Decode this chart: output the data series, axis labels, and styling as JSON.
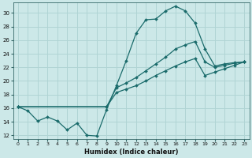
{
  "background_color": "#cce8e8",
  "grid_color": "#b0d4d4",
  "line_color": "#1a6b6b",
  "xlabel": "Humidex (Indice chaleur)",
  "xlim": [
    -0.5,
    23.5
  ],
  "ylim": [
    11.5,
    31.5
  ],
  "yticks": [
    12,
    14,
    16,
    18,
    20,
    22,
    24,
    26,
    28,
    30
  ],
  "xticks": [
    0,
    1,
    2,
    3,
    4,
    5,
    6,
    7,
    8,
    9,
    10,
    11,
    12,
    13,
    14,
    15,
    16,
    17,
    18,
    19,
    20,
    21,
    22,
    23
  ],
  "series1_x": [
    0,
    1,
    2,
    3,
    4,
    5,
    6,
    7,
    8,
    9,
    10,
    11,
    12,
    13,
    14,
    15,
    16,
    17,
    18,
    19,
    20,
    21,
    22,
    23
  ],
  "series1_y": [
    16.2,
    15.6,
    14.1,
    14.7,
    14.1,
    12.8,
    13.8,
    12.0,
    11.9,
    15.8,
    19.3,
    23.0,
    27.0,
    29.0,
    29.1,
    30.3,
    31.0,
    30.3,
    28.5,
    24.7,
    22.2,
    22.5,
    22.7,
    22.8
  ],
  "series2_x": [
    0,
    9,
    10,
    11,
    12,
    13,
    14,
    15,
    16,
    17,
    18,
    19,
    20,
    21,
    22,
    23
  ],
  "series2_y": [
    16.2,
    16.2,
    19.0,
    19.7,
    20.5,
    21.5,
    22.5,
    23.5,
    24.7,
    25.3,
    25.8,
    22.8,
    22.0,
    22.3,
    22.6,
    22.8
  ],
  "series3_x": [
    0,
    9,
    10,
    11,
    12,
    13,
    14,
    15,
    16,
    17,
    18,
    19,
    20,
    21,
    22,
    23
  ],
  "series3_y": [
    16.2,
    16.2,
    18.3,
    18.8,
    19.3,
    20.0,
    20.8,
    21.5,
    22.2,
    22.8,
    23.3,
    20.8,
    21.3,
    21.8,
    22.3,
    22.8
  ]
}
